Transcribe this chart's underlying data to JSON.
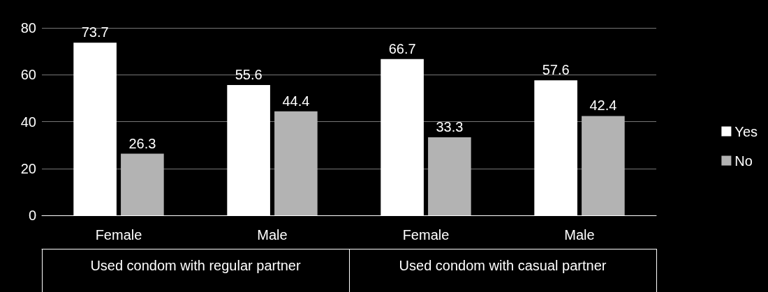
{
  "chart_data": {
    "type": "bar",
    "categories": [
      "Female",
      "Male",
      "Female",
      "Male"
    ],
    "series": [
      {
        "name": "Yes",
        "color": "#ffffff",
        "values": [
          73.7,
          55.6,
          66.7,
          57.6
        ]
      },
      {
        "name": "No",
        "color": "#b3b3b3",
        "values": [
          26.3,
          44.4,
          33.3,
          42.4
        ]
      }
    ],
    "ylim": [
      0,
      80
    ],
    "yticks": [
      0,
      20,
      40,
      60,
      80
    ],
    "grid": "y",
    "legend": "right",
    "data_labels": true,
    "annotations": [
      "Used condom with regular partner",
      "Used condom with casual partner"
    ]
  }
}
